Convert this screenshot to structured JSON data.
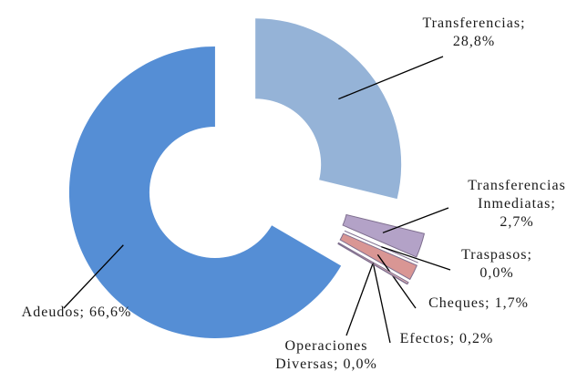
{
  "chart_data": {
    "type": "donut",
    "values": [
      28.8,
      2.7,
      0.0,
      1.7,
      0.2,
      0.0,
      66.6
    ],
    "value_labels": [
      "Transferencias;\n28,8%",
      "Transferencias\nInmediatas;\n2,7%",
      "Traspasos;\n0,0%",
      "Cheques; 1,7%",
      "Efectos; 0,2%",
      "Operaciones\nDiversas; 0,0%",
      "Adeudos; 66,6%"
    ],
    "colors": [
      "#95b3d7",
      "#b3a2c7",
      "#c3d69b",
      "#d99694",
      "#e6b9b8",
      "#93cddd",
      "#558ed5"
    ]
  }
}
